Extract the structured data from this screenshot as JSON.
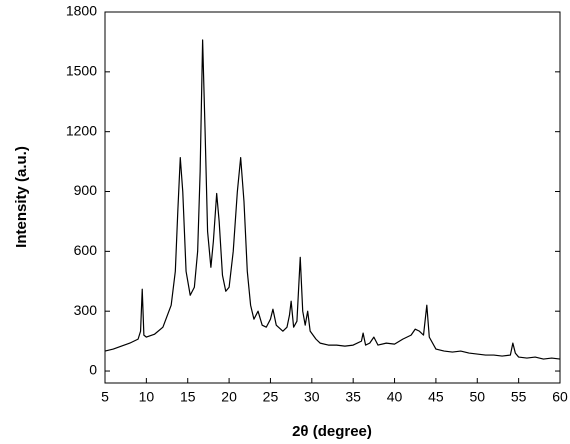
{
  "chart_data": {
    "type": "line",
    "x_label": "2θ (degree)",
    "y_label": "Intensity (a.u.)",
    "xlim": [
      5,
      60
    ],
    "xticks": [
      5,
      10,
      15,
      20,
      25,
      30,
      35,
      40,
      45,
      50,
      55,
      60
    ],
    "ylim": [
      -60,
      1800
    ],
    "yticks": [
      0,
      300,
      600,
      900,
      1200,
      1500,
      1800
    ],
    "series": [
      {
        "color": "#000000",
        "x": [
          5,
          6,
          7,
          8,
          9,
          9.3,
          9.5,
          9.7,
          10,
          11,
          12,
          13,
          13.5,
          13.8,
          14.1,
          14.4,
          14.8,
          15.3,
          15.8,
          16.2,
          16.5,
          16.8,
          17.1,
          17.4,
          17.8,
          18.1,
          18.5,
          18.8,
          19.2,
          19.6,
          20,
          20.5,
          21,
          21.4,
          21.8,
          22.2,
          22.6,
          23,
          23.5,
          24,
          24.5,
          25,
          25.3,
          25.7,
          26.5,
          27,
          27.3,
          27.5,
          27.8,
          28.2,
          28.6,
          28.9,
          29.2,
          29.5,
          29.8,
          30.5,
          31,
          32,
          33,
          34,
          35,
          36,
          36.2,
          36.5,
          37,
          37.5,
          38,
          39,
          40,
          41,
          42,
          42.5,
          43,
          43.5,
          43.9,
          44.2,
          45,
          46,
          47,
          48,
          49,
          50,
          51,
          52,
          53,
          54,
          54.3,
          54.6,
          55,
          56,
          57,
          58,
          59,
          60
        ],
        "values": [
          100,
          110,
          125,
          140,
          160,
          200,
          410,
          180,
          170,
          185,
          220,
          330,
          500,
          800,
          1070,
          900,
          500,
          380,
          420,
          600,
          1000,
          1660,
          1200,
          700,
          520,
          650,
          890,
          750,
          480,
          400,
          420,
          600,
          900,
          1070,
          850,
          500,
          330,
          260,
          300,
          230,
          220,
          260,
          310,
          230,
          200,
          220,
          280,
          350,
          220,
          250,
          570,
          300,
          230,
          300,
          200,
          160,
          140,
          130,
          130,
          125,
          130,
          150,
          190,
          130,
          140,
          170,
          130,
          140,
          135,
          160,
          180,
          210,
          200,
          180,
          330,
          170,
          110,
          100,
          95,
          100,
          90,
          85,
          80,
          80,
          75,
          80,
          140,
          90,
          70,
          65,
          70,
          60,
          65,
          60
        ]
      }
    ]
  }
}
